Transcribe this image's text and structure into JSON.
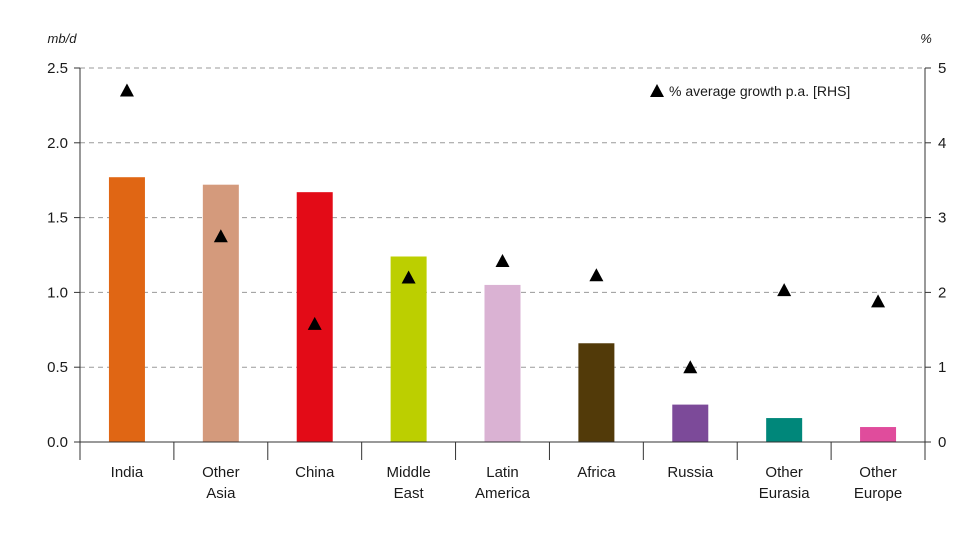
{
  "chart_data": {
    "type": "bar",
    "categories": [
      [
        "India"
      ],
      [
        "Other",
        "Asia"
      ],
      [
        "China"
      ],
      [
        "Middle",
        "East"
      ],
      [
        "Latin",
        "America"
      ],
      [
        "Africa"
      ],
      [
        "Russia"
      ],
      [
        "Other",
        "Eurasia"
      ],
      [
        "Other",
        "Europe"
      ]
    ],
    "series": [
      {
        "values": [
          1.77,
          1.72,
          1.67,
          1.24,
          1.05,
          0.66,
          0.25,
          0.16,
          0.1
        ],
        "colors": [
          "#e06614",
          "#d49a7c",
          "#e30b17",
          "#bccf00",
          "#dab2d3",
          "#523a09",
          "#7c4a99",
          "#00877a",
          "#e04c9c"
        ],
        "axis": "left"
      },
      {
        "name": "% average growth p.a. [RHS]",
        "marker": "triangle",
        "values": [
          4.7,
          2.75,
          1.58,
          2.2,
          2.42,
          2.23,
          1.0,
          2.03,
          1.88
        ],
        "axis": "right"
      }
    ],
    "ylabel_left": "mb/d",
    "ylabel_right": "%",
    "ylim_left": [
      0,
      2.5
    ],
    "ylim_right": [
      0,
      5
    ],
    "yticks_left": [
      "0.0",
      "0.5",
      "1.0",
      "1.5",
      "2.0",
      "2.5"
    ],
    "yticks_right": [
      "0",
      "1",
      "2",
      "3",
      "4",
      "5"
    ],
    "grid": "horizontal dashed",
    "legend_position": "top-right"
  }
}
